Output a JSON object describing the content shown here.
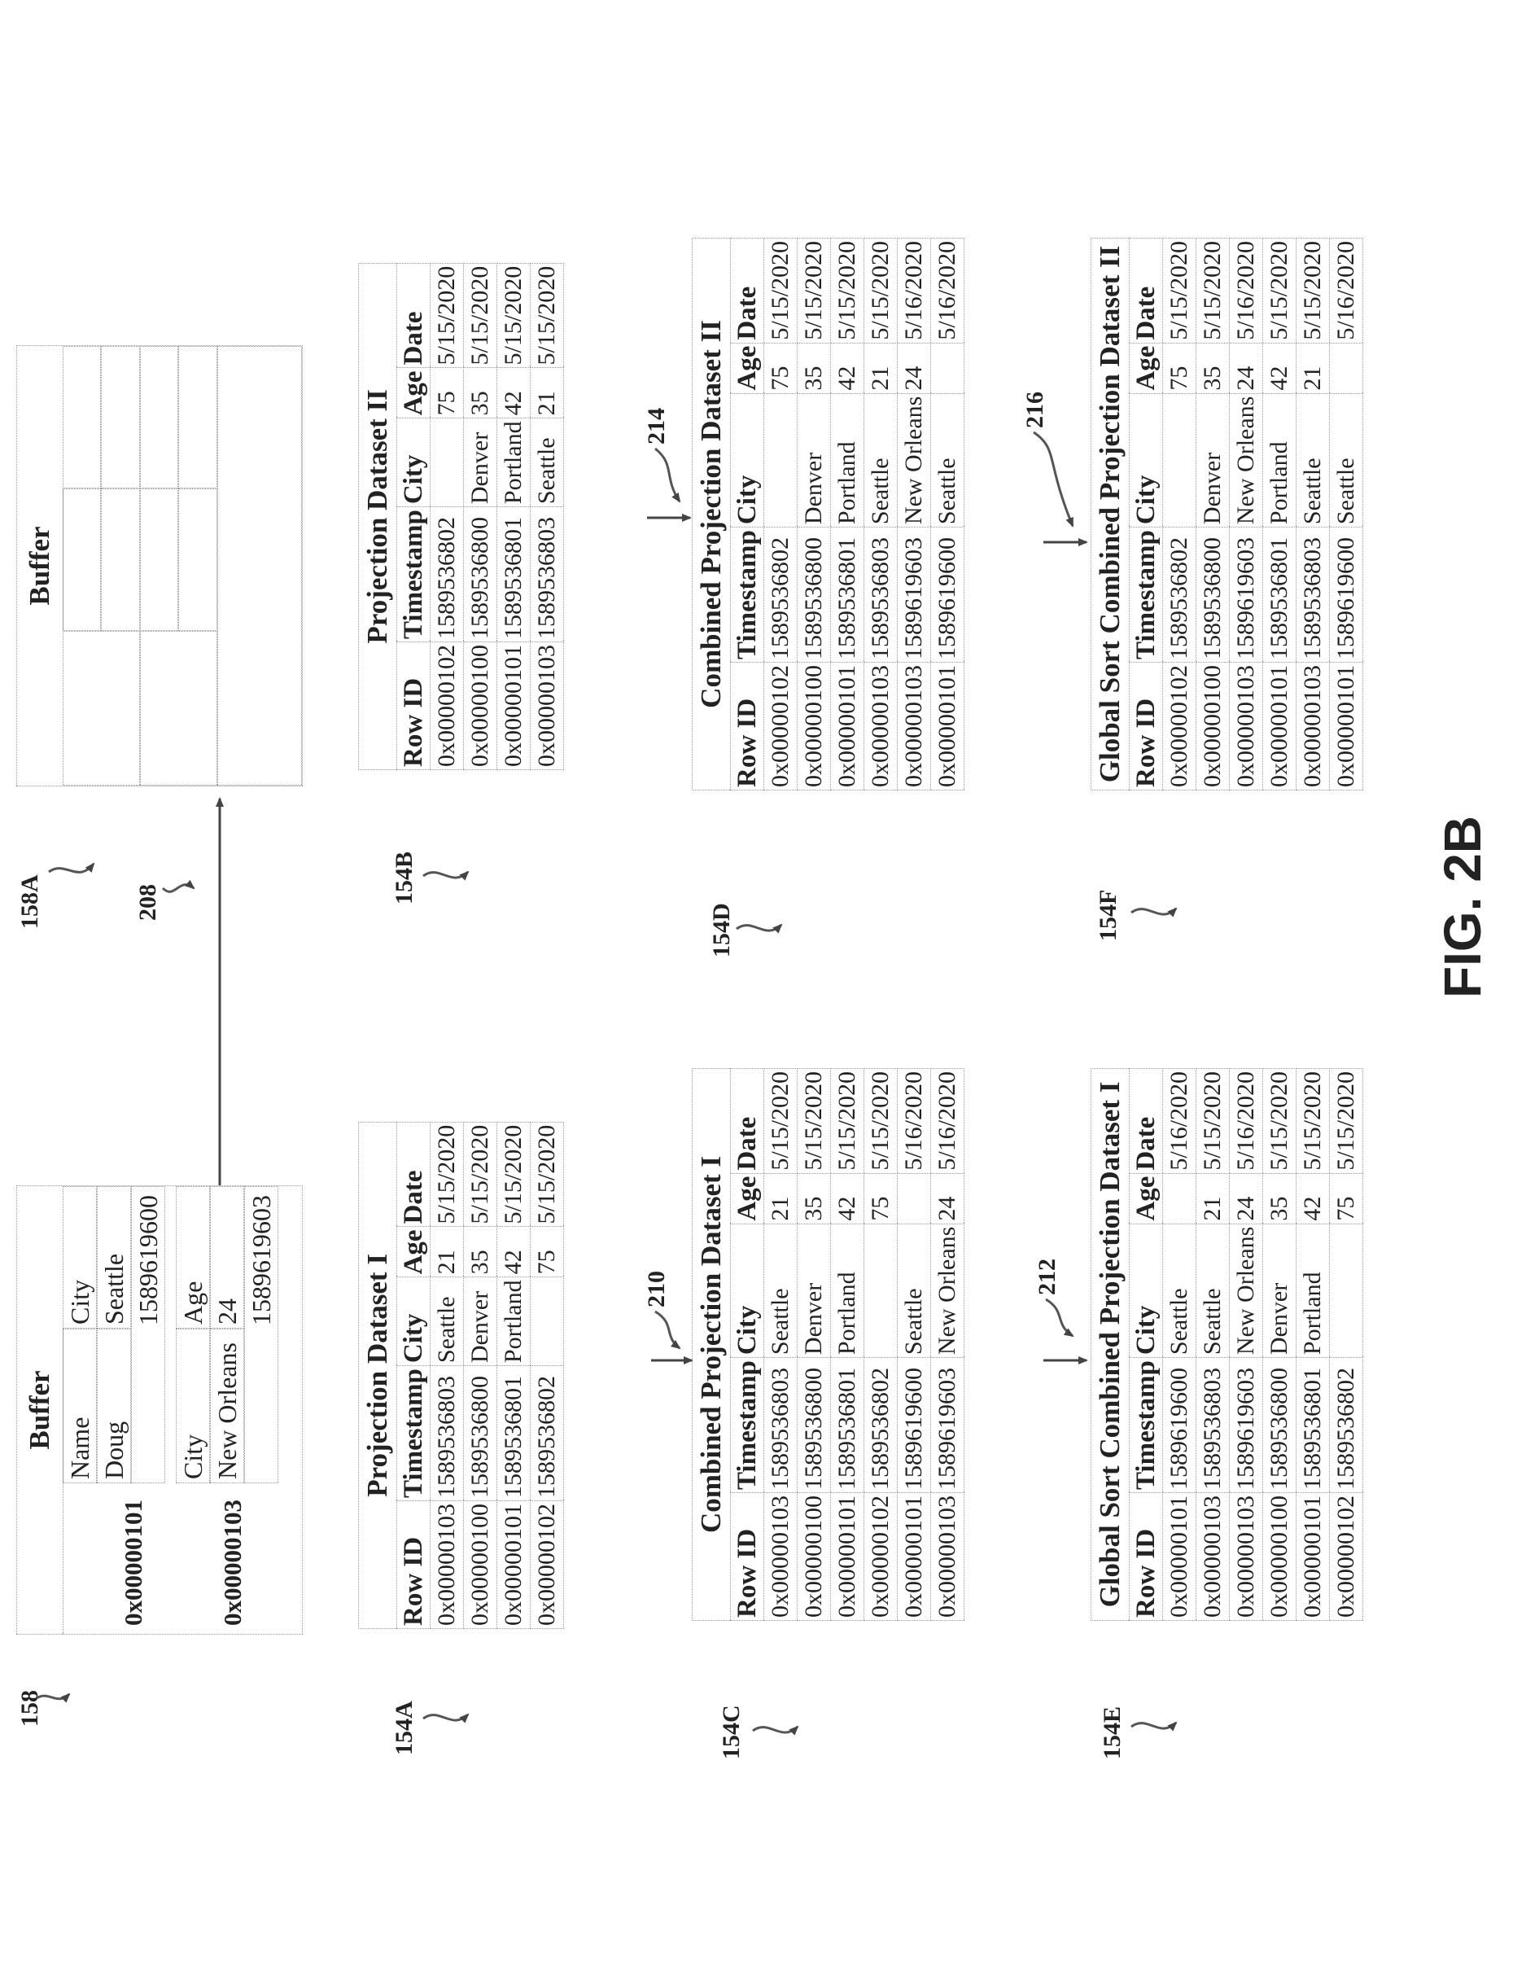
{
  "figure_label": "FIG. 2B",
  "refs": {
    "buffer_a": "158",
    "buffer_b": "158A",
    "arrow": "208",
    "proj_1": "154A",
    "proj_2": "154B",
    "comb_1": "154C",
    "comb_2": "154D",
    "sort_1": "154E",
    "sort_2": "154F",
    "step_210": "210",
    "step_212": "212",
    "step_214": "214",
    "step_216": "216"
  },
  "buffer_a": {
    "title": "Buffer",
    "row1_id": "0x00000101",
    "name_h": "Name",
    "name_v": "Doug",
    "city_h": "City",
    "city_v": "Seattle",
    "ts1": "1589619600",
    "row2_id": "0x00000103",
    "city2_h": "City",
    "city2_v": "New Orleans",
    "age_h": "Age",
    "age_v": "24",
    "ts2": "1589619603"
  },
  "buffer_b": {
    "title": "Buffer"
  },
  "tables": [
    {
      "title": "Projection Dataset I",
      "headers": [
        "Row ID",
        "Timestamp",
        "City",
        "Age",
        "Date"
      ],
      "rows": [
        [
          "0x00000103",
          "1589536803",
          "Seattle",
          "21",
          "5/15/2020"
        ],
        [
          "0x00000100",
          "1589536800",
          "Denver",
          "35",
          "5/15/2020"
        ],
        [
          "0x00000101",
          "1589536801",
          "Portland",
          "42",
          "5/15/2020"
        ],
        [
          "0x00000102",
          "1589536802",
          "",
          "75",
          "5/15/2020"
        ]
      ]
    },
    {
      "title": "Projection Dataset II",
      "headers": [
        "Row ID",
        "Timestamp",
        "City",
        "Age",
        "Date"
      ],
      "rows": [
        [
          "0x00000102",
          "1589536802",
          "",
          "75",
          "5/15/2020"
        ],
        [
          "0x00000100",
          "1589536800",
          "Denver",
          "35",
          "5/15/2020"
        ],
        [
          "0x00000101",
          "1589536801",
          "Portland",
          "42",
          "5/15/2020"
        ],
        [
          "0x00000103",
          "1589536803",
          "Seattle",
          "21",
          "5/15/2020"
        ]
      ]
    },
    {
      "title": "Combined Projection Dataset I",
      "headers": [
        "Row ID",
        "Timestamp",
        "City",
        "Age",
        "Date"
      ],
      "rows": [
        [
          "0x00000103",
          "1589536803",
          "Seattle",
          "21",
          "5/15/2020"
        ],
        [
          "0x00000100",
          "1589536800",
          "Denver",
          "35",
          "5/15/2020"
        ],
        [
          "0x00000101",
          "1589536801",
          "Portland",
          "42",
          "5/15/2020"
        ],
        [
          "0x00000102",
          "1589536802",
          "",
          "75",
          "5/15/2020"
        ],
        [
          "0x00000101",
          "1589619600",
          "Seattle",
          "",
          "5/16/2020"
        ],
        [
          "0x00000103",
          "1589619603",
          "New Orleans",
          "24",
          "5/16/2020"
        ]
      ]
    },
    {
      "title": "Combined Projection Dataset II",
      "headers": [
        "Row ID",
        "Timestamp",
        "City",
        "Age",
        "Date"
      ],
      "rows": [
        [
          "0x00000102",
          "1589536802",
          "",
          "75",
          "5/15/2020"
        ],
        [
          "0x00000100",
          "1589536800",
          "Denver",
          "35",
          "5/15/2020"
        ],
        [
          "0x00000101",
          "1589536801",
          "Portland",
          "42",
          "5/15/2020"
        ],
        [
          "0x00000103",
          "1589536803",
          "Seattle",
          "21",
          "5/15/2020"
        ],
        [
          "0x00000103",
          "1589619603",
          "New Orleans",
          "24",
          "5/16/2020"
        ],
        [
          "0x00000101",
          "1589619600",
          "Seattle",
          "",
          "5/16/2020"
        ]
      ]
    },
    {
      "title": "Global Sort Combined Projection Dataset I",
      "headers": [
        "Row ID",
        "Timestamp",
        "City",
        "Age",
        "Date"
      ],
      "rows": [
        [
          "0x00000101",
          "1589619600",
          "Seattle",
          "",
          "5/16/2020"
        ],
        [
          "0x00000103",
          "1589536803",
          "Seattle",
          "21",
          "5/15/2020"
        ],
        [
          "0x00000103",
          "1589619603",
          "New Orleans",
          "24",
          "5/16/2020"
        ],
        [
          "0x00000100",
          "1589536800",
          "Denver",
          "35",
          "5/15/2020"
        ],
        [
          "0x00000101",
          "1589536801",
          "Portland",
          "42",
          "5/15/2020"
        ],
        [
          "0x00000102",
          "1589536802",
          "",
          "75",
          "5/15/2020"
        ]
      ]
    },
    {
      "title": "Global Sort Combined Projection Dataset II",
      "headers": [
        "Row ID",
        "Timestamp",
        "City",
        "Age",
        "Date"
      ],
      "rows": [
        [
          "0x00000102",
          "1589536802",
          "",
          "75",
          "5/15/2020"
        ],
        [
          "0x00000100",
          "1589536800",
          "Denver",
          "35",
          "5/15/2020"
        ],
        [
          "0x00000103",
          "1589619603",
          "New Orleans",
          "24",
          "5/16/2020"
        ],
        [
          "0x00000101",
          "1589536801",
          "Portland",
          "42",
          "5/15/2020"
        ],
        [
          "0x00000103",
          "1589536803",
          "Seattle",
          "21",
          "5/15/2020"
        ],
        [
          "0x00000101",
          "1589619600",
          "Seattle",
          "",
          "5/16/2020"
        ]
      ]
    }
  ]
}
